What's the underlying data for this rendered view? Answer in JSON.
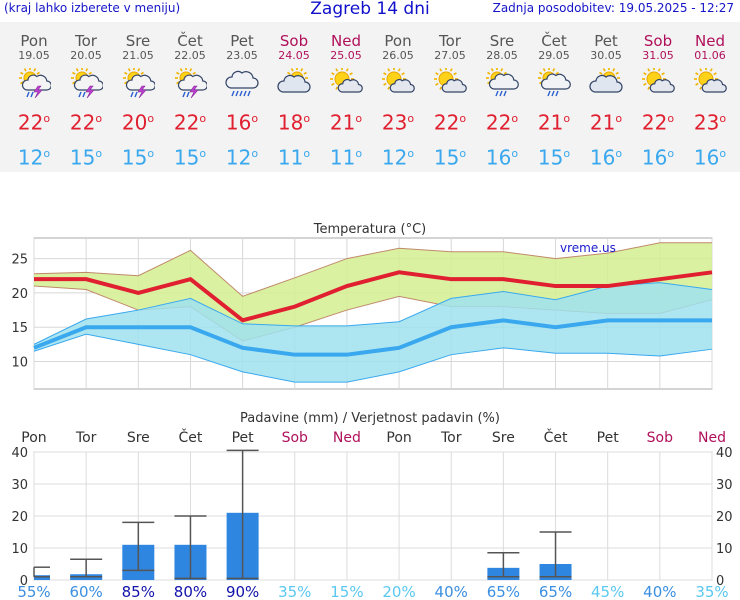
{
  "header": {
    "left_text": "(kraj lahko izberete v meniju)",
    "title": "Zagreb 14 dni",
    "updated": "Zadnja posodobitev: 19.05.2025 - 12:27"
  },
  "days": [
    {
      "name": "Pon",
      "date": "19.05",
      "weekend": false,
      "icon": "thunderstorm-sun-icon",
      "tmax": "22",
      "tmin": "12"
    },
    {
      "name": "Tor",
      "date": "20.05",
      "weekend": false,
      "icon": "thunderstorm-sun-icon",
      "tmax": "22",
      "tmin": "15"
    },
    {
      "name": "Sre",
      "date": "21.05",
      "weekend": false,
      "icon": "thunderstorm-sun-icon",
      "tmax": "20",
      "tmin": "15"
    },
    {
      "name": "Čet",
      "date": "22.05",
      "weekend": false,
      "icon": "thunderstorm-sun-icon",
      "tmax": "22",
      "tmin": "15"
    },
    {
      "name": "Pet",
      "date": "23.05",
      "weekend": false,
      "icon": "rain-cloud-icon",
      "tmax": "16",
      "tmin": "12"
    },
    {
      "name": "Sob",
      "date": "24.05",
      "weekend": true,
      "icon": "cloudy-sun-icon",
      "tmax": "18",
      "tmin": "11"
    },
    {
      "name": "Ned",
      "date": "25.05",
      "weekend": true,
      "icon": "partly-sunny-icon",
      "tmax": "21",
      "tmin": "11"
    },
    {
      "name": "Pon",
      "date": "26.05",
      "weekend": false,
      "icon": "partly-sunny-icon",
      "tmax": "23",
      "tmin": "12"
    },
    {
      "name": "Tor",
      "date": "27.05",
      "weekend": false,
      "icon": "partly-sunny-icon",
      "tmax": "22",
      "tmin": "15"
    },
    {
      "name": "Sre",
      "date": "28.05",
      "weekend": false,
      "icon": "rain-sun-icon",
      "tmax": "22",
      "tmin": "16"
    },
    {
      "name": "Čet",
      "date": "29.05",
      "weekend": false,
      "icon": "rain-sun-icon",
      "tmax": "21",
      "tmin": "15"
    },
    {
      "name": "Pet",
      "date": "30.05",
      "weekend": false,
      "icon": "cloudy-sun-icon",
      "tmax": "21",
      "tmin": "16"
    },
    {
      "name": "Sob",
      "date": "31.05",
      "weekend": true,
      "icon": "partly-sunny-icon",
      "tmax": "22",
      "tmin": "16"
    },
    {
      "name": "Ned",
      "date": "01.06",
      "weekend": true,
      "icon": "partly-sunny-icon",
      "tmax": "23",
      "tmin": "16"
    }
  ],
  "colors": {
    "tmax": "#e02030",
    "tmin": "#3aa8ee",
    "weekend": "#b0105a",
    "weekday": "#555555",
    "max_band": "#d4ee90",
    "min_band": "#9fe2ee",
    "precip_bar": "#2f86e0"
  },
  "chart_data": [
    {
      "type": "line",
      "title": "Temperatura (°C)",
      "watermark": "vreme.us",
      "categories": [
        "Pon",
        "Tor",
        "Sre",
        "Čet",
        "Pet",
        "Sob",
        "Ned",
        "Pon",
        "Tor",
        "Sre",
        "Čet",
        "Pet",
        "Sob",
        "Ned"
      ],
      "ylim": [
        6,
        28
      ],
      "yticks": [
        10,
        15,
        20,
        25
      ],
      "series": [
        {
          "role": "max",
          "values": [
            22,
            22,
            20,
            22,
            16,
            18,
            21,
            23,
            22,
            22,
            21,
            21,
            22,
            23
          ]
        },
        {
          "role": "max-band-high",
          "values": [
            22.8,
            23,
            22.5,
            26.2,
            19.5,
            22.2,
            25,
            26.5,
            26,
            26,
            25,
            25.8,
            27.3,
            27.3
          ]
        },
        {
          "role": "max-band-low",
          "values": [
            21,
            20.5,
            17.5,
            18,
            13,
            15,
            17.5,
            19.5,
            18,
            18,
            17.5,
            17,
            17,
            19
          ]
        },
        {
          "role": "min",
          "values": [
            12,
            15,
            15,
            15,
            12,
            11,
            11,
            12,
            15,
            16,
            15,
            16,
            16,
            16
          ]
        },
        {
          "role": "min-band-high",
          "values": [
            12.5,
            16.2,
            17.5,
            19.2,
            15.5,
            15.2,
            15.2,
            15.8,
            19.2,
            20.2,
            19,
            21,
            21.5,
            20.5
          ]
        },
        {
          "role": "min-band-low",
          "values": [
            11.5,
            14,
            12.5,
            11,
            8.5,
            7,
            7,
            8.5,
            11,
            12,
            11.2,
            11.2,
            10.8,
            11.8
          ]
        }
      ]
    },
    {
      "type": "bar",
      "title": "Padavine (mm) / Verjetnost padavin (%)",
      "categories": [
        "Pon",
        "Tor",
        "Sre",
        "Čet",
        "Pet",
        "Sob",
        "Ned",
        "Pon",
        "Tor",
        "Sre",
        "Čet",
        "Pet",
        "Sob",
        "Ned"
      ],
      "weekend": [
        false,
        false,
        false,
        false,
        false,
        true,
        true,
        false,
        false,
        false,
        false,
        false,
        true,
        true
      ],
      "ylim": [
        0,
        40
      ],
      "yticks": [
        0,
        10,
        20,
        30,
        40
      ],
      "values": [
        1.5,
        1.8,
        11,
        11,
        21,
        0,
        0,
        0,
        0,
        3.8,
        5,
        0,
        0,
        0
      ],
      "error_high": [
        4,
        6.5,
        18,
        20,
        40.5,
        null,
        null,
        null,
        null,
        8.5,
        15,
        null,
        null,
        null
      ],
      "error_low": [
        1,
        1,
        3,
        0.5,
        0.5,
        null,
        null,
        null,
        null,
        1,
        1,
        null,
        null,
        null
      ],
      "probability": [
        "55%",
        "60%",
        "85%",
        "80%",
        "90%",
        "35%",
        "15%",
        "20%",
        "40%",
        "65%",
        "65%",
        "45%",
        "40%",
        "35%"
      ],
      "probability_colors": [
        "#3b8fe0",
        "#3b8fe0",
        "#1212aa",
        "#1212aa",
        "#1212aa",
        "#5ac8f0",
        "#5ac8f0",
        "#5ac8f0",
        "#3b8fe0",
        "#3b8fe0",
        "#3b8fe0",
        "#5ac8f0",
        "#3b8fe0",
        "#5ac8f0"
      ]
    }
  ]
}
